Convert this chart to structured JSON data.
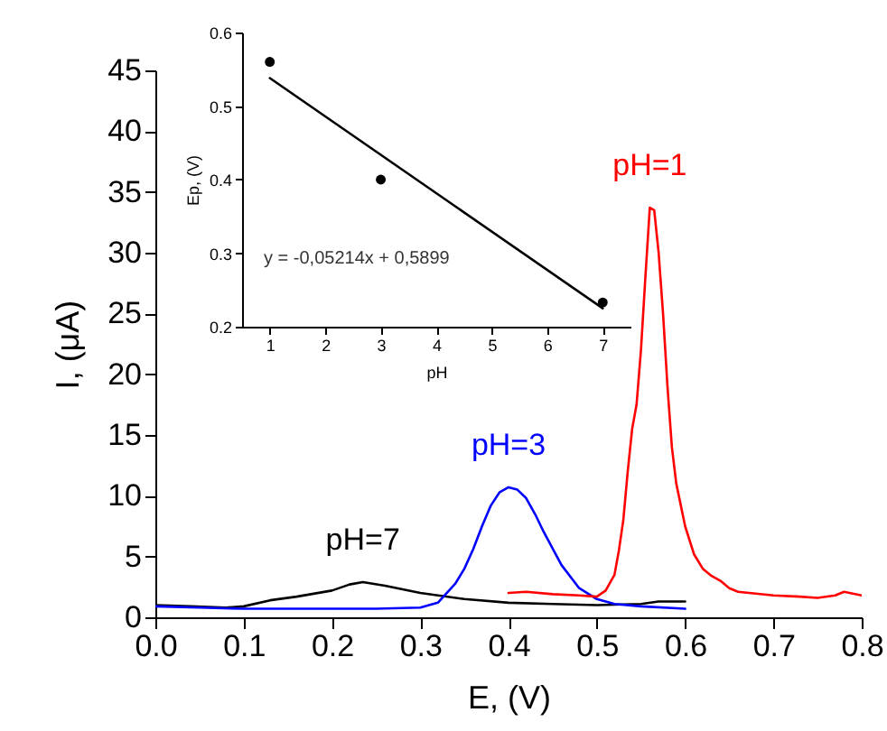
{
  "chart_data": [
    {
      "type": "line",
      "xlabel": "E, (V)",
      "ylabel": "I, (μA)",
      "xlim": [
        0,
        0.8
      ],
      "ylim": [
        0,
        45
      ],
      "xticks": [
        {
          "value": 0,
          "label": "0.0"
        },
        0.1,
        0.2,
        0.3,
        0.4,
        0.5,
        0.6,
        0.7,
        0.8
      ],
      "yticks": [
        0,
        5,
        10,
        15,
        20,
        25,
        30,
        35,
        40,
        45
      ],
      "grid": false,
      "marker": "none",
      "line_style": "solid",
      "series": [
        {
          "name": "pH=7",
          "color": "#000000",
          "x": [
            0,
            0.04,
            0.08,
            0.1,
            0.13,
            0.16,
            0.2,
            0.22,
            0.235,
            0.26,
            0.3,
            0.35,
            0.4,
            0.45,
            0.5,
            0.55,
            0.57,
            0.6
          ],
          "values": [
            1.0,
            0.9,
            0.8,
            0.9,
            1.4,
            1.7,
            2.2,
            2.7,
            2.9,
            2.6,
            2.0,
            1.5,
            1.2,
            1.1,
            1.0,
            1.1,
            1.3,
            1.3
          ]
        },
        {
          "name": "pH=3",
          "color": "#0000ff",
          "x": [
            0,
            0.05,
            0.1,
            0.2,
            0.25,
            0.3,
            0.32,
            0.34,
            0.35,
            0.36,
            0.37,
            0.38,
            0.39,
            0.4,
            0.41,
            0.42,
            0.43,
            0.44,
            0.46,
            0.48,
            0.5,
            0.52,
            0.55,
            0.6
          ],
          "values": [
            0.9,
            0.8,
            0.7,
            0.7,
            0.7,
            0.8,
            1.2,
            2.8,
            4.0,
            5.6,
            7.5,
            9.2,
            10.3,
            10.7,
            10.5,
            9.8,
            8.5,
            7.0,
            4.3,
            2.4,
            1.5,
            1.1,
            0.9,
            0.7
          ]
        },
        {
          "name": "pH=1",
          "color": "#ff0000",
          "x": [
            0.4,
            0.42,
            0.45,
            0.48,
            0.5,
            0.51,
            0.52,
            0.525,
            0.53,
            0.535,
            0.54,
            0.545,
            0.55,
            0.555,
            0.56,
            0.565,
            0.57,
            0.575,
            0.58,
            0.585,
            0.59,
            0.6,
            0.61,
            0.62,
            0.63,
            0.64,
            0.65,
            0.66,
            0.7,
            0.73,
            0.75,
            0.77,
            0.78,
            0.8
          ],
          "values": [
            2.0,
            2.1,
            1.9,
            1.8,
            1.7,
            2.2,
            3.5,
            5.5,
            8.0,
            12.0,
            15.5,
            17.5,
            22.0,
            28.0,
            33.7,
            33.5,
            30.0,
            25.0,
            19.0,
            14.0,
            11.0,
            7.5,
            5.2,
            4.0,
            3.4,
            3.0,
            2.4,
            2.1,
            1.8,
            1.7,
            1.6,
            1.8,
            2.1,
            1.8
          ]
        }
      ]
    },
    {
      "type": "scatter",
      "xlabel": "pH",
      "ylabel": "Ep, (V)",
      "xlim": [
        0.5,
        7.5
      ],
      "ylim": [
        0.2,
        0.6
      ],
      "xticks": [
        1,
        2,
        3,
        4,
        5,
        6,
        7
      ],
      "yticks": [
        0.2,
        0.3,
        0.4,
        0.5,
        0.6
      ],
      "grid": false,
      "marker": "circle",
      "annotations": [
        "y = -0,05214x + 0,5899"
      ],
      "series": [
        {
          "color": "#000000",
          "x": [
            1,
            3,
            7
          ],
          "values": [
            0.56,
            0.4,
            0.233
          ]
        },
        {
          "type": "line",
          "marker": "none",
          "color": "#000000",
          "x": [
            1,
            7
          ],
          "values": [
            0.538,
            0.225
          ]
        }
      ]
    }
  ]
}
